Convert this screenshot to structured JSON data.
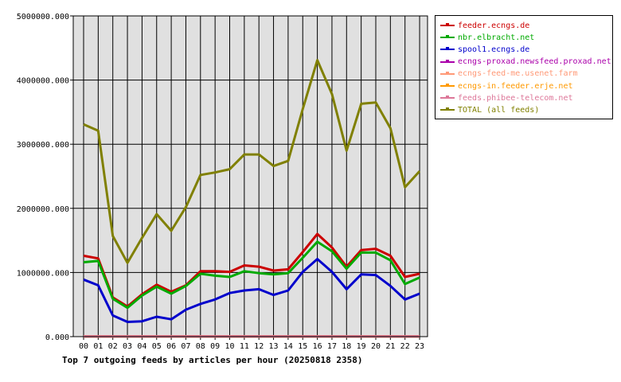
{
  "chart_data": {
    "type": "line",
    "title": "Top 7 outgoing feeds by articles per hour (20250818 2358)",
    "xlabel": "",
    "ylabel": "",
    "ylim": [
      0,
      5000000
    ],
    "yticks": [
      "0.000",
      "1000000.000",
      "2000000.000",
      "3000000.000",
      "4000000.000",
      "5000000.000"
    ],
    "categories": [
      "00",
      "01",
      "02",
      "03",
      "04",
      "05",
      "06",
      "07",
      "08",
      "09",
      "10",
      "11",
      "12",
      "13",
      "14",
      "15",
      "16",
      "17",
      "18",
      "19",
      "20",
      "21",
      "22",
      "23"
    ],
    "grid": true,
    "legend_position": "right",
    "series": [
      {
        "name": "feeder.ecngs.de",
        "color": "#cc0000",
        "values": [
          1260000,
          1220000,
          610000,
          470000,
          660000,
          810000,
          700000,
          800000,
          1020000,
          1020000,
          1010000,
          1110000,
          1090000,
          1030000,
          1050000,
          1320000,
          1600000,
          1390000,
          1090000,
          1350000,
          1370000,
          1260000,
          930000,
          980000
        ]
      },
      {
        "name": "nbr.elbracht.net",
        "color": "#00aa00",
        "values": [
          1160000,
          1180000,
          590000,
          450000,
          640000,
          780000,
          670000,
          790000,
          980000,
          950000,
          930000,
          1020000,
          990000,
          970000,
          990000,
          1230000,
          1480000,
          1330000,
          1060000,
          1310000,
          1310000,
          1190000,
          820000,
          920000
        ]
      },
      {
        "name": "spool1.ecngs.de",
        "color": "#0000cc",
        "values": [
          890000,
          800000,
          330000,
          230000,
          240000,
          310000,
          270000,
          420000,
          510000,
          580000,
          680000,
          720000,
          740000,
          650000,
          720000,
          1010000,
          1210000,
          1010000,
          740000,
          970000,
          960000,
          790000,
          580000,
          670000
        ]
      },
      {
        "name": "ecngs-proxad.newsfeed.proxad.net",
        "color": "#aa00aa",
        "values": [
          5000,
          5000,
          5000,
          5000,
          5000,
          5000,
          5000,
          5000,
          5000,
          5000,
          5000,
          5000,
          5000,
          5000,
          5000,
          5000,
          5000,
          5000,
          5000,
          5000,
          5000,
          5000,
          5000,
          5000
        ]
      },
      {
        "name": "ecngs-feed-me.usenet.farm",
        "color": "#ff9977",
        "values": [
          3000,
          3000,
          3000,
          3000,
          3000,
          3000,
          3000,
          3000,
          3000,
          3000,
          3000,
          3000,
          3000,
          3000,
          3000,
          3000,
          3000,
          3000,
          3000,
          3000,
          3000,
          3000,
          3000,
          3000
        ]
      },
      {
        "name": "ecngs-in.feeder.erje.net",
        "color": "#ff9900",
        "values": [
          2000,
          2000,
          2000,
          2000,
          2000,
          2000,
          2000,
          2000,
          2000,
          2000,
          2000,
          2000,
          2000,
          2000,
          2000,
          2000,
          2000,
          2000,
          2000,
          2000,
          2000,
          2000,
          2000,
          2000
        ]
      },
      {
        "name": "feeds.phibee-telecom.net",
        "color": "#dd7799",
        "values": [
          4000,
          4000,
          4000,
          4000,
          4000,
          4000,
          4000,
          4000,
          4000,
          4000,
          4000,
          4000,
          4000,
          4000,
          4000,
          4000,
          4000,
          4000,
          4000,
          4000,
          4000,
          4000,
          4000,
          4000
        ]
      },
      {
        "name": "TOTAL (all feeds)",
        "color": "#808000",
        "values": [
          3310000,
          3210000,
          1570000,
          1150000,
          1540000,
          1910000,
          1650000,
          2020000,
          2520000,
          2560000,
          2610000,
          2840000,
          2840000,
          2660000,
          2740000,
          3550000,
          4310000,
          3780000,
          2900000,
          3630000,
          3650000,
          3250000,
          2330000,
          2580000
        ]
      }
    ]
  }
}
